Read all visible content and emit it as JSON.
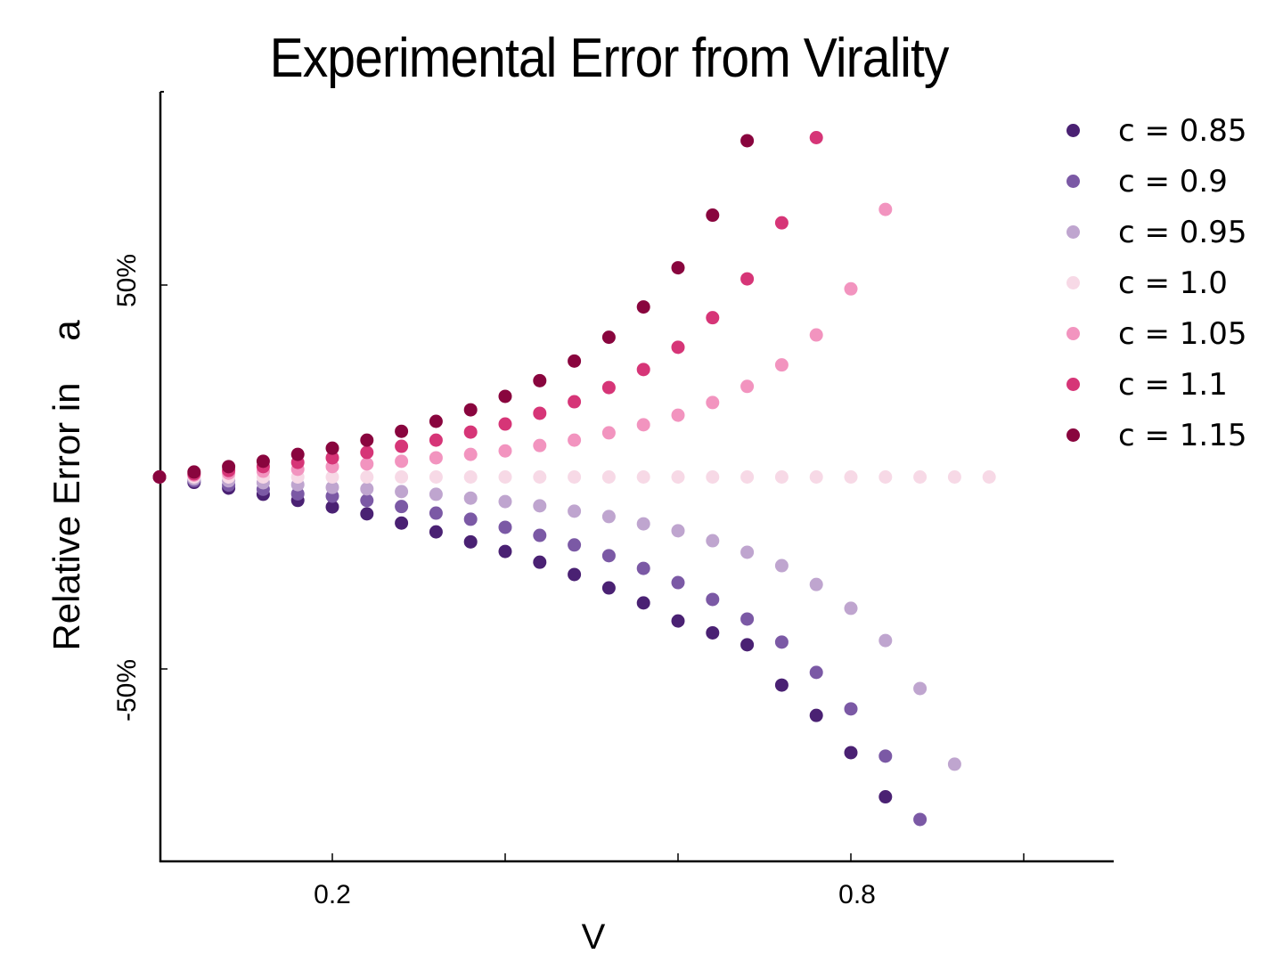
{
  "chart_data": {
    "type": "scatter",
    "title": "Experimental Error from Virality",
    "xlabel": "V",
    "ylabel": "Relative Error in    a",
    "xlim": [
      0.0,
      1.1
    ],
    "ylim": [
      -100,
      100
    ],
    "x_ticks": [
      0.0,
      0.2,
      0.4,
      0.6,
      0.8,
      1.0
    ],
    "x_tick_labels": [
      "",
      "0.2",
      "",
      "",
      "0.8",
      ""
    ],
    "y_ticks": [
      50,
      -50
    ],
    "y_tick_labels": [
      "50%",
      "-50%"
    ],
    "grid": false,
    "legend_position": "upper right (outside plot)",
    "series": [
      {
        "name": "c = 0.85",
        "color": "#4a2173",
        "x": [
          0.0,
          0.04,
          0.08,
          0.12,
          0.16,
          0.2,
          0.24,
          0.28,
          0.32,
          0.36,
          0.4,
          0.44,
          0.48,
          0.52,
          0.56,
          0.6,
          0.64,
          0.68,
          0.72,
          0.76,
          0.8,
          0.84
        ],
        "y": [
          0,
          -1.4,
          -2.9,
          -4.5,
          -6.1,
          -7.8,
          -9.6,
          -12.0,
          -14.3,
          -16.9,
          -19.4,
          -22.2,
          -25.4,
          -28.9,
          -32.8,
          -37.5,
          -40.6,
          -43.7,
          -54.2,
          -62.1,
          -71.8,
          -83.3
        ]
      },
      {
        "name": "c = 0.9",
        "color": "#7b59a5",
        "x": [
          0.0,
          0.04,
          0.08,
          0.12,
          0.16,
          0.2,
          0.24,
          0.28,
          0.32,
          0.36,
          0.4,
          0.44,
          0.48,
          0.52,
          0.56,
          0.6,
          0.64,
          0.68,
          0.72,
          0.76,
          0.8,
          0.84,
          0.88
        ],
        "y": [
          0,
          -1.0,
          -2.1,
          -3.2,
          -4.4,
          -5.0,
          -6.1,
          -7.7,
          -9.4,
          -11.0,
          -13.1,
          -15.2,
          -17.7,
          -20.5,
          -23.8,
          -27.5,
          -31.9,
          -37.0,
          -43.0,
          -50.9,
          -60.4,
          -72.7,
          -89.2
        ]
      },
      {
        "name": "c = 0.95",
        "color": "#bfa5cf",
        "x": [
          0.0,
          0.04,
          0.08,
          0.12,
          0.16,
          0.2,
          0.24,
          0.28,
          0.32,
          0.36,
          0.4,
          0.44,
          0.48,
          0.52,
          0.56,
          0.6,
          0.64,
          0.68,
          0.72,
          0.76,
          0.8,
          0.84,
          0.88,
          0.92
        ],
        "y": [
          0,
          -0.5,
          -1.0,
          -1.5,
          -2.0,
          -2.7,
          -3.1,
          -3.8,
          -4.5,
          -5.5,
          -6.4,
          -7.5,
          -8.9,
          -10.3,
          -12.2,
          -14.0,
          -16.6,
          -19.6,
          -23.1,
          -28.0,
          -34.2,
          -42.6,
          -55.1,
          -74.8
        ]
      },
      {
        "name": "c = 1.0",
        "color": "#f7d9e6",
        "x": [
          0.0,
          0.04,
          0.08,
          0.12,
          0.16,
          0.2,
          0.24,
          0.28,
          0.32,
          0.36,
          0.4,
          0.44,
          0.48,
          0.52,
          0.56,
          0.6,
          0.64,
          0.68,
          0.72,
          0.76,
          0.8,
          0.84,
          0.88,
          0.92,
          0.96
        ],
        "y": [
          0,
          0,
          0,
          0,
          0,
          0,
          0,
          0,
          0,
          0,
          0,
          0,
          0,
          0,
          0,
          0,
          0,
          0,
          0,
          0,
          0,
          0,
          0,
          0,
          0
        ]
      },
      {
        "name": "c = 1.05",
        "color": "#f294bf",
        "x": [
          0.0,
          0.04,
          0.08,
          0.12,
          0.16,
          0.2,
          0.24,
          0.28,
          0.32,
          0.36,
          0.4,
          0.44,
          0.48,
          0.52,
          0.56,
          0.6,
          0.64,
          0.68,
          0.72,
          0.76,
          0.8,
          0.84
        ],
        "y": [
          0,
          0.5,
          1.0,
          1.5,
          2.0,
          2.7,
          3.4,
          4.1,
          5.0,
          5.9,
          6.8,
          8.2,
          9.6,
          11.5,
          13.6,
          16.1,
          19.4,
          23.6,
          29.2,
          37.0,
          49.0,
          69.7
        ]
      },
      {
        "name": "c = 1.1",
        "color": "#d63577",
        "x": [
          0.0,
          0.04,
          0.08,
          0.12,
          0.16,
          0.2,
          0.24,
          0.28,
          0.32,
          0.36,
          0.4,
          0.44,
          0.48,
          0.52,
          0.56,
          0.6,
          0.64,
          0.68,
          0.72,
          0.76
        ],
        "y": [
          0,
          0.8,
          1.7,
          2.7,
          3.8,
          5.0,
          6.4,
          8.0,
          9.6,
          11.7,
          13.8,
          16.6,
          19.6,
          23.3,
          28.0,
          33.8,
          41.5,
          51.6,
          66.2,
          88.4
        ]
      },
      {
        "name": "c = 1.15",
        "color": "#89053e",
        "x": [
          0.0,
          0.04,
          0.08,
          0.12,
          0.16,
          0.2,
          0.24,
          0.28,
          0.32,
          0.36,
          0.4,
          0.44,
          0.48,
          0.52,
          0.56,
          0.6,
          0.64,
          0.68
        ],
        "y": [
          0,
          1.3,
          2.7,
          4.1,
          5.9,
          7.5,
          9.6,
          11.9,
          14.5,
          17.5,
          21.0,
          25.1,
          30.2,
          36.4,
          44.3,
          54.5,
          68.2,
          87.6
        ]
      }
    ]
  },
  "legend": [
    {
      "label": "c = 0.85",
      "color": "#4a2173"
    },
    {
      "label": "c = 0.9",
      "color": "#7b59a5"
    },
    {
      "label": "c = 0.95",
      "color": "#bfa5cf"
    },
    {
      "label": "c = 1.0",
      "color": "#f7d9e6"
    },
    {
      "label": "c = 1.05",
      "color": "#f294bf"
    },
    {
      "label": "c = 1.1",
      "color": "#d63577"
    },
    {
      "label": "c = 1.15",
      "color": "#89053e"
    }
  ]
}
